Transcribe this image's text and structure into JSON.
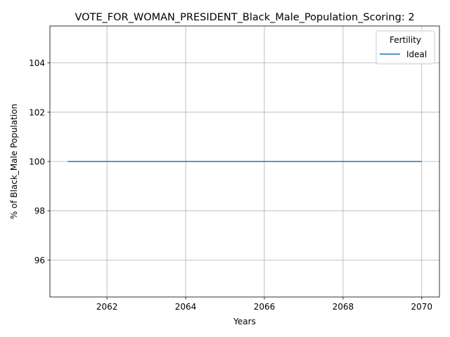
{
  "chart_data": {
    "type": "line",
    "title": "VOTE_FOR_WOMAN_PRESIDENT_Black_Male_Population_Scoring: 2",
    "xlabel": "Years",
    "ylabel": "% of Black_Male Population",
    "xlim": [
      2060.55,
      2070.45
    ],
    "ylim": [
      94.5,
      105.5
    ],
    "xticks": [
      2062,
      2064,
      2066,
      2068,
      2070
    ],
    "yticks": [
      96,
      98,
      100,
      102,
      104
    ],
    "grid": true,
    "legend": {
      "title": "Fertility",
      "placement": "top-right"
    },
    "series": [
      {
        "name": "Ideal",
        "color": "#1f77b4",
        "x": [
          2061,
          2062,
          2063,
          2064,
          2065,
          2066,
          2067,
          2068,
          2069,
          2070
        ],
        "y": [
          100,
          100,
          100,
          100,
          100,
          100,
          100,
          100,
          100,
          100
        ]
      }
    ]
  }
}
